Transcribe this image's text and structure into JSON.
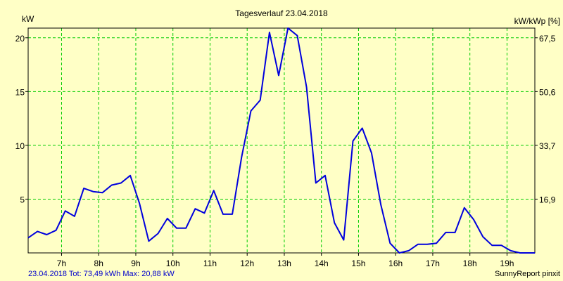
{
  "chart_data": {
    "type": "line",
    "title": "Tagesverlauf 23.04.2018",
    "ylabel_left": "kW",
    "ylabel_right": "kW/kWp [%]",
    "x_ticks": [
      "7h",
      "8h",
      "9h",
      "10h",
      "11h",
      "12h",
      "13h",
      "14h",
      "15h",
      "16h",
      "17h",
      "18h",
      "19h"
    ],
    "x_tick_hours": [
      7,
      8,
      9,
      10,
      11,
      12,
      13,
      14,
      15,
      16,
      17,
      18,
      19
    ],
    "xlim": [
      6.1,
      19.75
    ],
    "y_ticks_left": [
      5,
      10,
      15,
      20
    ],
    "ylim": [
      0,
      20.9
    ],
    "y_ticks_right": [
      "16,9",
      "33,7",
      "50,6",
      "67,5"
    ],
    "grid": true,
    "colors": {
      "background": "#ffffc6",
      "plot_background": "#ffffc6",
      "grid": "#00cc00",
      "series": "#0000dd",
      "axis": "#000000"
    },
    "series": [
      {
        "x": [
          6.1,
          6.35,
          6.6,
          6.85,
          7.1,
          7.35,
          7.6,
          7.85,
          8.1,
          8.35,
          8.6,
          8.85,
          9.1,
          9.35,
          9.6,
          9.85,
          10.1,
          10.35,
          10.6,
          10.85,
          11.1,
          11.35,
          11.6,
          11.85,
          12.1,
          12.35,
          12.6,
          12.85,
          13.1,
          13.35,
          13.6,
          13.85,
          14.1,
          14.35,
          14.6,
          14.85,
          15.1,
          15.35,
          15.6,
          15.85,
          16.1,
          16.35,
          16.6,
          16.85,
          17.1,
          17.35,
          17.6,
          17.85,
          18.1,
          18.35,
          18.6,
          18.85,
          19.1,
          19.35,
          19.6,
          19.75
        ],
        "y": [
          1.4,
          2.0,
          1.7,
          2.1,
          3.9,
          3.4,
          6.0,
          5.7,
          5.6,
          6.3,
          6.5,
          7.2,
          4.6,
          1.1,
          1.8,
          3.2,
          2.3,
          2.3,
          4.1,
          3.7,
          5.8,
          3.6,
          3.6,
          8.9,
          13.2,
          14.2,
          20.5,
          16.5,
          20.9,
          20.2,
          15.4,
          6.5,
          7.2,
          2.8,
          1.2,
          10.4,
          11.6,
          9.3,
          4.5,
          0.9,
          0.0,
          0.2,
          0.8,
          0.8,
          0.9,
          1.9,
          1.9,
          4.2,
          3.1,
          1.5,
          0.7,
          0.7,
          0.2,
          0.0,
          0.0,
          0.0
        ]
      }
    ]
  },
  "footer": {
    "left": "23.04.2018 Tot: 73,49 kWh Max: 20,88 kW",
    "right": "SunnyReport pinxit"
  }
}
